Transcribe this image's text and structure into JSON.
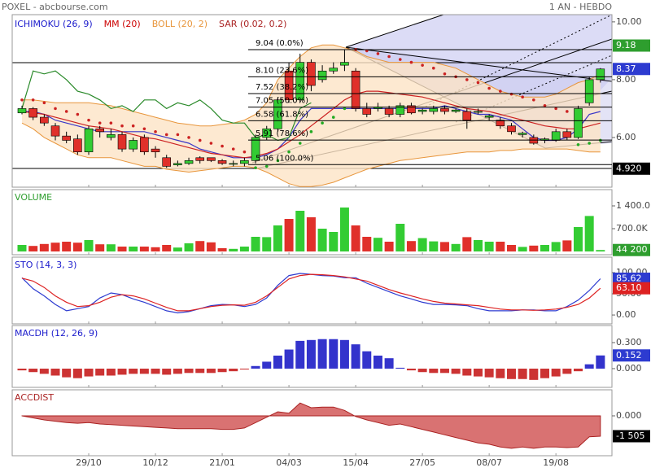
{
  "chart_data": [
    {
      "type": "candlestick",
      "title": "POXEL - abcbourse.com",
      "subtitle": "1 AN - HEBDO",
      "up_color": "#33cc33",
      "down_color": "#e0302a",
      "open": [
        6.85,
        7.0,
        6.7,
        6.4,
        6.05,
        5.95,
        5.5,
        6.3,
        6.0,
        6.1,
        5.6,
        6.0,
        5.6,
        5.3,
        5.05,
        5.1,
        5.3,
        5.3,
        5.2,
        5.1,
        5.1,
        5.2,
        6.0,
        6.3,
        8.3,
        7.3,
        8.6,
        8.0,
        8.3,
        8.5,
        8.3,
        7.0,
        7.0,
        7.0,
        6.8,
        7.1,
        6.9,
        6.9,
        7.0,
        6.9,
        6.9,
        6.9,
        6.7,
        6.6,
        6.4,
        6.1,
        6.0,
        5.9,
        5.9,
        6.2,
        6.0,
        7.2,
        8.0
      ],
      "high": [
        7.1,
        7.05,
        6.8,
        6.5,
        6.2,
        6.1,
        6.4,
        6.4,
        6.3,
        6.2,
        6.0,
        6.1,
        5.7,
        5.4,
        5.2,
        5.3,
        5.35,
        5.3,
        5.25,
        5.2,
        5.3,
        6.1,
        6.4,
        7.4,
        8.6,
        8.9,
        8.7,
        8.5,
        8.6,
        9.04,
        8.4,
        7.2,
        7.2,
        7.1,
        7.2,
        7.2,
        7.0,
        7.1,
        7.1,
        7.0,
        7.0,
        7.0,
        6.8,
        6.7,
        6.5,
        6.2,
        6.1,
        6.0,
        6.3,
        6.3,
        7.1,
        8.1,
        8.4
      ],
      "low": [
        6.8,
        6.6,
        6.4,
        5.9,
        5.8,
        5.4,
        5.4,
        6.0,
        5.9,
        5.5,
        5.5,
        5.4,
        5.3,
        4.95,
        5.0,
        5.05,
        5.1,
        5.15,
        5.05,
        5.0,
        5.0,
        5.1,
        5.9,
        6.2,
        7.2,
        7.2,
        7.6,
        7.9,
        8.2,
        8.3,
        6.9,
        6.7,
        6.9,
        6.7,
        6.7,
        6.8,
        6.8,
        6.8,
        6.8,
        6.85,
        6.3,
        6.8,
        6.6,
        6.3,
        6.1,
        6.0,
        5.75,
        5.8,
        5.85,
        5.9,
        5.95,
        7.1,
        7.9
      ],
      "close": [
        7.0,
        6.7,
        6.5,
        6.05,
        5.9,
        5.5,
        6.3,
        6.2,
        6.1,
        5.6,
        5.9,
        5.5,
        5.5,
        5.0,
        5.1,
        5.2,
        5.2,
        5.2,
        5.1,
        5.1,
        5.2,
        6.0,
        6.3,
        7.3,
        7.3,
        8.6,
        7.8,
        8.3,
        8.4,
        8.6,
        7.0,
        6.8,
        7.05,
        6.8,
        7.1,
        6.85,
        6.95,
        7.0,
        6.9,
        6.95,
        6.6,
        6.9,
        6.75,
        6.4,
        6.2,
        6.15,
        5.8,
        5.95,
        6.2,
        6.0,
        7.0,
        8.0,
        8.37
      ],
      "ylim": [
        4.28,
        10.25
      ],
      "yticks": [
        {
          "value": 6,
          "label": "6.00"
        },
        {
          "value": 8,
          "label": "8.00"
        },
        {
          "value": 10,
          "label": "10.00"
        }
      ],
      "indicators": [
        {
          "name": "ICHIMOKU (26, 9)",
          "color": "#1a1acc",
          "lines": [
            {
              "color": "#3a36c8",
              "values": [
                6.9,
                6.9,
                6.8,
                6.6,
                6.5,
                6.4,
                6.3,
                6.2,
                6.2,
                6.2,
                6.2,
                6.2,
                6.1,
                6.0,
                5.9,
                5.8,
                5.6,
                5.5,
                5.4,
                5.3,
                5.3,
                5.3,
                5.4,
                5.6,
                6.0,
                6.6,
                7.0,
                7.0,
                7.0,
                7.0,
                7.0,
                7.0,
                7.0,
                7.0,
                7.0,
                7.0,
                7.0,
                7.0,
                7.1,
                7.0,
                6.9,
                6.8,
                6.8,
                6.7,
                6.6,
                6.3,
                6.0,
                5.9,
                5.9,
                6.0,
                6.3,
                6.8,
                6.9
              ]
            },
            {
              "color": "#2a8a2a",
              "values": [
                7.0,
                8.3,
                8.2,
                8.3,
                8.0,
                7.6,
                7.5,
                7.3,
                7.0,
                7.1,
                6.9,
                7.3,
                7.3,
                7.0,
                7.2,
                7.1,
                7.3,
                7.0,
                6.6,
                6.5,
                6.5,
                6.0,
                6.1,
                5.9,
                6.0,
                7.0,
                7.2,
                null,
                null,
                null,
                null,
                null,
                null,
                null,
                null,
                null,
                null,
                null,
                null,
                null,
                null,
                null,
                null,
                null,
                null,
                null,
                null,
                null,
                null,
                null,
                null,
                null,
                null
              ]
            }
          ]
        },
        {
          "name": "MM (20)",
          "color": "#cc0000",
          "lines": [
            {
              "color": "#cc2222",
              "values": [
                6.9,
                6.85,
                6.8,
                6.7,
                6.6,
                6.5,
                6.4,
                6.35,
                6.3,
                6.2,
                6.1,
                6.0,
                5.95,
                5.85,
                5.75,
                5.65,
                5.55,
                5.45,
                5.4,
                5.35,
                5.3,
                5.35,
                5.45,
                5.6,
                5.85,
                6.1,
                6.4,
                6.7,
                7.0,
                7.3,
                7.5,
                7.6,
                7.6,
                7.55,
                7.5,
                7.45,
                7.4,
                7.3,
                7.2,
                7.1,
                7.0,
                6.95,
                6.9,
                6.8,
                6.7,
                6.6,
                6.5,
                6.4,
                6.35,
                6.3,
                6.3,
                6.4,
                6.5
              ]
            }
          ]
        },
        {
          "name": "BOLL (20, 2)",
          "color": "#e8963c",
          "band": {
            "fill": "#fde4c6",
            "upper": [
              7.3,
              7.3,
              7.25,
              7.2,
              7.2,
              7.2,
              7.2,
              7.15,
              7.1,
              7.0,
              6.9,
              6.8,
              6.7,
              6.6,
              6.5,
              6.45,
              6.4,
              6.4,
              6.45,
              6.5,
              6.6,
              6.8,
              7.2,
              8.0,
              8.4,
              8.8,
              9.1,
              9.2,
              9.2,
              9.1,
              9.0,
              8.8,
              8.7,
              8.6,
              8.6,
              8.6,
              8.6,
              8.6,
              8.5,
              8.4,
              8.2,
              8.0,
              7.8,
              7.6,
              7.5,
              7.4,
              7.4,
              7.4,
              7.5,
              7.7,
              7.9,
              8.0,
              8.2
            ],
            "lower": [
              6.5,
              6.3,
              6.0,
              5.8,
              5.6,
              5.4,
              5.3,
              5.3,
              5.3,
              5.2,
              5.1,
              5.0,
              5.0,
              4.9,
              4.85,
              4.8,
              4.85,
              4.9,
              4.95,
              5.0,
              5.0,
              4.95,
              4.8,
              4.6,
              4.4,
              4.3,
              4.3,
              4.35,
              4.45,
              4.6,
              4.75,
              4.9,
              5.0,
              5.1,
              5.2,
              5.25,
              5.3,
              5.35,
              5.4,
              5.45,
              5.5,
              5.5,
              5.5,
              5.55,
              5.55,
              5.6,
              5.6,
              5.6,
              5.6,
              5.6,
              5.55,
              5.5,
              5.5
            ]
          }
        },
        {
          "name": "SAR (0.02, 0.2)",
          "color": "#aa2222",
          "dots": {
            "above_color": "#cc2222",
            "below_color": "#22aa22",
            "values": [
              7.3,
              7.3,
              7.2,
              7.0,
              6.9,
              6.8,
              6.6,
              6.5,
              6.5,
              6.4,
              6.4,
              6.3,
              6.2,
              6.1,
              6.1,
              6.0,
              5.9,
              5.8,
              5.7,
              5.6,
              5.5,
              4.95,
              5.0,
              5.2,
              5.5,
              5.8,
              6.2,
              6.5,
              6.7,
              7.0,
              9.04,
              9.0,
              8.9,
              8.8,
              8.7,
              8.6,
              8.5,
              8.4,
              8.2,
              8.1,
              8.0,
              7.9,
              7.7,
              7.6,
              7.5,
              7.4,
              7.3,
              7.1,
              7.0,
              6.9,
              5.75,
              5.8,
              5.9
            ]
          }
        }
      ],
      "levels": [
        {
          "value": 9.04,
          "label": "9.04 (0.0%)"
        },
        {
          "value": 8.1,
          "label": "8.10 (23.6%)"
        },
        {
          "value": 7.52,
          "label": "7.52 (38.2%)"
        },
        {
          "value": 7.05,
          "label": "7.05 (50.0%)"
        },
        {
          "value": 6.58,
          "label": "6.58 (61.8%)"
        },
        {
          "value": 5.91,
          "label": "5.91 (78.6%)"
        },
        {
          "value": 5.06,
          "label": "5.06 (100.0%)"
        }
      ],
      "markers": [
        {
          "value": 9.18,
          "label": "9.18",
          "color": "#2e9e2e"
        },
        {
          "value": 8.37,
          "label": "8.37",
          "color": "#2d3bd0"
        },
        {
          "value": 4.92,
          "label": "4.920",
          "color": "#000000"
        }
      ]
    },
    {
      "type": "volume",
      "title": "VOLUME",
      "color": "#2e9e2e",
      "up_color": "#33cc33",
      "down_color": "#e0302a",
      "values": [
        200000,
        170000,
        230000,
        270000,
        300000,
        270000,
        350000,
        220000,
        220000,
        150000,
        150000,
        150000,
        130000,
        200000,
        120000,
        250000,
        320000,
        280000,
        100000,
        80000,
        150000,
        450000,
        440000,
        800000,
        1000000,
        1250000,
        1050000,
        700000,
        600000,
        1350000,
        800000,
        450000,
        420000,
        300000,
        850000,
        320000,
        410000,
        310000,
        290000,
        230000,
        440000,
        350000,
        300000,
        300000,
        200000,
        140000,
        180000,
        200000,
        290000,
        340000,
        750000,
        1090000,
        44200
      ],
      "ylim": [
        -100000,
        1900000
      ],
      "yticks": [
        {
          "value": 700000,
          "label": "700.0K"
        },
        {
          "value": 1400000,
          "label": "1 400.0K"
        }
      ],
      "markers": [
        {
          "value": 44200,
          "label": "44 200",
          "color": "#2e9e2e"
        }
      ]
    },
    {
      "type": "line",
      "title": "STO (14, 3, 3)",
      "color": "#1a1acc",
      "series": [
        {
          "color": "#2d3bd0",
          "values": [
            88,
            62,
            45,
            25,
            10,
            15,
            20,
            40,
            52,
            48,
            38,
            30,
            20,
            10,
            5,
            8,
            15,
            22,
            25,
            24,
            20,
            25,
            40,
            70,
            93,
            98,
            96,
            93,
            92,
            88,
            88,
            75,
            65,
            55,
            45,
            38,
            30,
            25,
            25,
            24,
            22,
            15,
            10,
            10,
            10,
            12,
            12,
            10,
            10,
            20,
            35,
            58,
            85.62
          ]
        },
        {
          "color": "#dd2222",
          "values": [
            87,
            80,
            65,
            45,
            30,
            20,
            22,
            30,
            42,
            48,
            45,
            38,
            28,
            18,
            10,
            10,
            15,
            20,
            23,
            24,
            23,
            30,
            45,
            65,
            85,
            93,
            96,
            95,
            93,
            90,
            85,
            80,
            70,
            60,
            52,
            45,
            38,
            32,
            28,
            26,
            24,
            22,
            18,
            14,
            12,
            12,
            11,
            12,
            14,
            18,
            25,
            40,
            63.1
          ]
        }
      ],
      "ylim": [
        -21,
        136.5
      ],
      "yticks": [
        {
          "value": 0,
          "label": "0.00"
        },
        {
          "value": 50,
          "label": "50.00"
        },
        {
          "value": 100,
          "label": "100.00"
        }
      ],
      "markers": [
        {
          "value": 85.62,
          "label": "85.62",
          "color": "#2d3bd0"
        },
        {
          "value": 63.1,
          "label": "63.10",
          "color": "#dd2222"
        }
      ]
    },
    {
      "type": "bar",
      "title": "MACDH (12, 26, 9)",
      "color": "#1a1acc",
      "up_color": "#3333cc",
      "down_color": "#cc3333",
      "values": [
        -0.02,
        -0.04,
        -0.06,
        -0.08,
        -0.1,
        -0.11,
        -0.09,
        -0.08,
        -0.08,
        -0.07,
        -0.06,
        -0.06,
        -0.06,
        -0.07,
        -0.06,
        -0.05,
        -0.05,
        -0.05,
        -0.04,
        -0.03,
        -0.01,
        0.03,
        0.08,
        0.15,
        0.22,
        0.32,
        0.33,
        0.34,
        0.34,
        0.33,
        0.28,
        0.2,
        0.15,
        0.12,
        0.01,
        -0.02,
        -0.04,
        -0.05,
        -0.05,
        -0.06,
        -0.08,
        -0.09,
        -0.1,
        -0.11,
        -0.12,
        -0.12,
        -0.13,
        -0.11,
        -0.09,
        -0.06,
        -0.03,
        0.05,
        0.152
      ],
      "ylim": [
        -0.216,
        0.497
      ],
      "yticks": [
        {
          "value": 0,
          "label": "0.000"
        },
        {
          "value": 0.3,
          "label": "0.300"
        }
      ],
      "markers": [
        {
          "value": 0.152,
          "label": "0.152",
          "color": "#2d3bd0"
        }
      ]
    },
    {
      "type": "area",
      "title": "ACCDIST",
      "color": "#aa2222",
      "fill": "#d97272",
      "values": [
        0,
        -150,
        -300,
        -400,
        -500,
        -550,
        -500,
        -600,
        -650,
        -700,
        -750,
        -800,
        -850,
        -900,
        -950,
        -950,
        -950,
        -950,
        -1000,
        -1000,
        -900,
        -500,
        -100,
        300,
        200,
        950,
        600,
        650,
        650,
        400,
        -50,
        -300,
        -500,
        -700,
        -600,
        -800,
        -1000,
        -1200,
        -1400,
        -1600,
        -1800,
        -2000,
        -2100,
        -2300,
        -2400,
        -2300,
        -2400,
        -2300,
        -2300,
        -2350,
        -2300,
        -1550,
        -1505
      ],
      "ylim": [
        -2950,
        1926
      ],
      "yticks": [
        {
          "value": 0,
          "label": "0.000"
        }
      ],
      "markers": [
        {
          "value": -1505,
          "label": "-1 505",
          "color": "#000000"
        }
      ],
      "categories": [
        null,
        null,
        null,
        null,
        null,
        null,
        "29/10",
        null,
        null,
        null,
        null,
        null,
        "10/12",
        null,
        null,
        null,
        null,
        null,
        "21/01",
        null,
        null,
        null,
        null,
        null,
        "04/03",
        null,
        null,
        null,
        null,
        null,
        "15/04",
        null,
        null,
        null,
        null,
        null,
        "27/05",
        null,
        null,
        null,
        null,
        null,
        "08/07",
        null,
        null,
        null,
        null,
        null,
        "19/08",
        null,
        null,
        null,
        null
      ]
    }
  ]
}
